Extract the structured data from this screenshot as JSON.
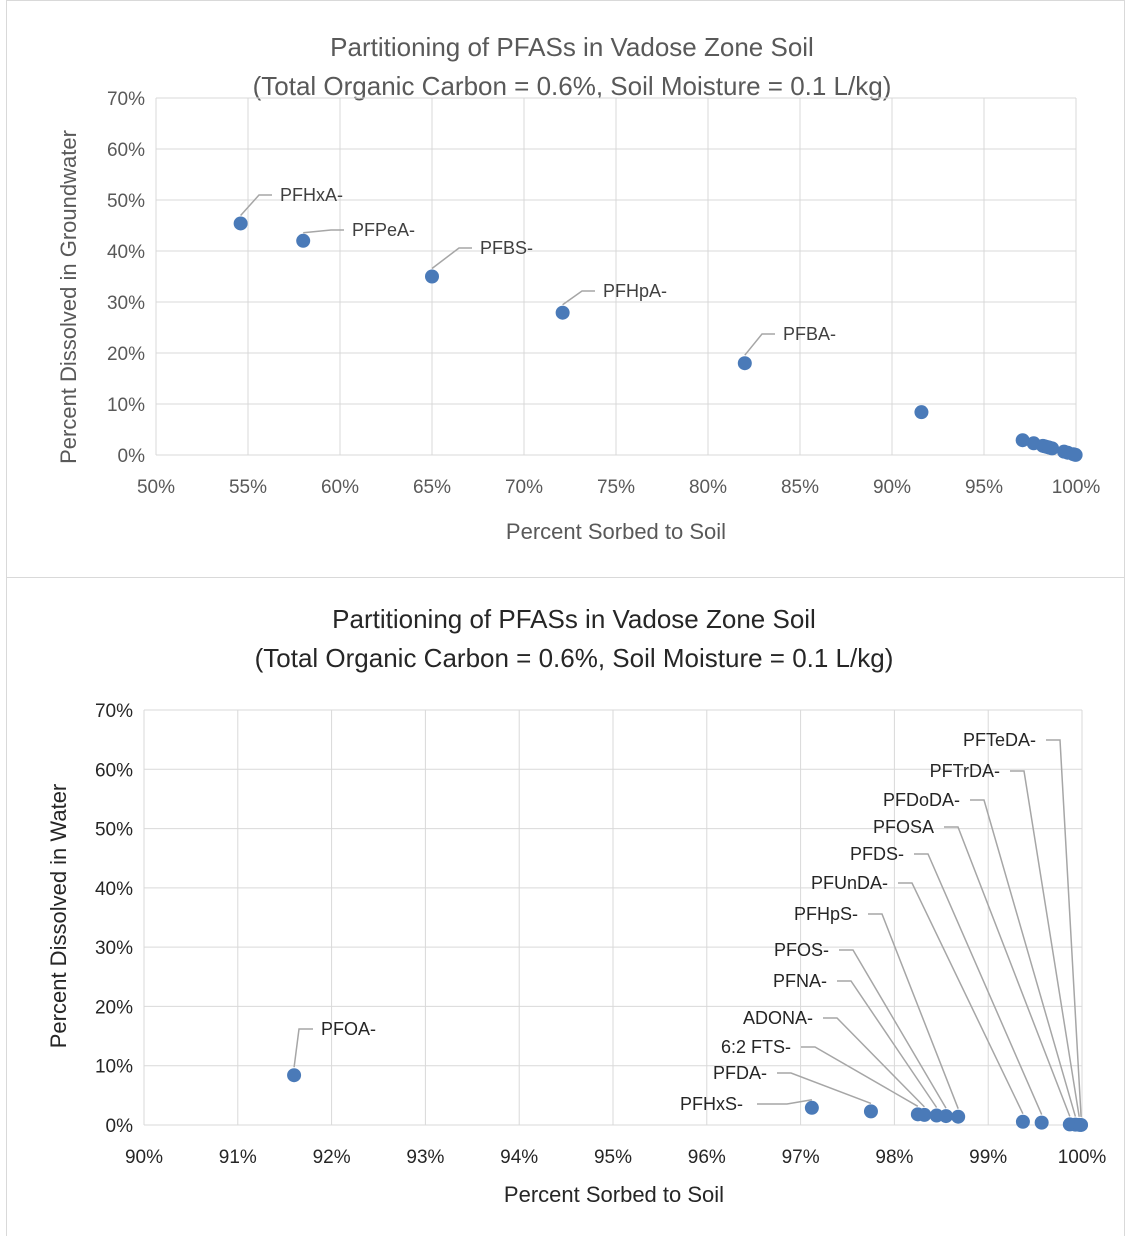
{
  "colors": {
    "marker": "#4a7ab8",
    "grid": "#d9d9d9",
    "leader": "#a6a6a6"
  },
  "chart_data": [
    {
      "type": "scatter",
      "title": "Partitioning of PFASs in Vadose Zone Soil",
      "subtitle": "(Total Organic Carbon = 0.6%, Soil Moisture = 0.1 L/kg)",
      "xlabel": "Percent Sorbed to Soil",
      "ylabel": "Percent Dissolved in Groundwater",
      "xlim": [
        50,
        100
      ],
      "ylim": [
        0,
        70
      ],
      "xticks": [
        "50%",
        "55%",
        "60%",
        "65%",
        "70%",
        "75%",
        "80%",
        "85%",
        "90%",
        "95%",
        "100%"
      ],
      "yticks": [
        "0%",
        "10%",
        "20%",
        "30%",
        "40%",
        "50%",
        "60%",
        "70%"
      ],
      "grid": true,
      "points": [
        {
          "x": 54.6,
          "y": 45.4,
          "label": "PFHxA-"
        },
        {
          "x": 58.0,
          "y": 42.0,
          "label": "PFPeA-"
        },
        {
          "x": 65.0,
          "y": 35.0,
          "label": "PFBS-"
        },
        {
          "x": 72.1,
          "y": 27.9,
          "label": "PFHpA-"
        },
        {
          "x": 82.0,
          "y": 18.0,
          "label": "PFBA-"
        },
        {
          "x": 91.6,
          "y": 8.4
        },
        {
          "x": 97.1,
          "y": 2.9
        },
        {
          "x": 97.7,
          "y": 2.3
        },
        {
          "x": 98.2,
          "y": 1.8
        },
        {
          "x": 98.3,
          "y": 1.7
        },
        {
          "x": 98.45,
          "y": 1.55
        },
        {
          "x": 98.55,
          "y": 1.45
        },
        {
          "x": 98.7,
          "y": 1.3
        },
        {
          "x": 99.35,
          "y": 0.65
        },
        {
          "x": 99.55,
          "y": 0.45
        },
        {
          "x": 99.85,
          "y": 0.15
        },
        {
          "x": 99.98,
          "y": 0.02
        }
      ]
    },
    {
      "type": "scatter",
      "title": "Partitioning of PFASs in Vadose Zone Soil",
      "subtitle": "(Total Organic Carbon = 0.6%, Soil Moisture = 0.1 L/kg)",
      "xlabel": "Percent Sorbed to Soil",
      "ylabel": "Percent Dissolved in Water",
      "xlim": [
        90,
        100
      ],
      "ylim": [
        0,
        70
      ],
      "xticks": [
        "90%",
        "91%",
        "92%",
        "93%",
        "94%",
        "95%",
        "96%",
        "97%",
        "98%",
        "99%",
        "100%"
      ],
      "yticks": [
        "0%",
        "10%",
        "20%",
        "30%",
        "40%",
        "50%",
        "60%",
        "70%"
      ],
      "grid": true,
      "points": [
        {
          "x": 91.6,
          "y": 8.4,
          "label": "PFOA-"
        },
        {
          "x": 97.12,
          "y": 2.9,
          "label": "PFHxS-"
        },
        {
          "x": 97.75,
          "y": 2.3,
          "label": "PFDA-"
        },
        {
          "x": 98.25,
          "y": 1.8,
          "label": "6:2 FTS-"
        },
        {
          "x": 98.32,
          "y": 1.7,
          "label": "ADONA-"
        },
        {
          "x": 98.45,
          "y": 1.6,
          "label": "PFNA-"
        },
        {
          "x": 98.55,
          "y": 1.5,
          "label": "PFOS-"
        },
        {
          "x": 98.68,
          "y": 1.4,
          "label": "PFHpS-"
        },
        {
          "x": 99.37,
          "y": 0.55,
          "label": "PFUnDA-"
        },
        {
          "x": 99.57,
          "y": 0.4,
          "label": "PFDS-"
        },
        {
          "x": 99.87,
          "y": 0.1,
          "label": "PFOSA"
        },
        {
          "x": 99.93,
          "y": 0.06,
          "label": "PFDoDA-"
        },
        {
          "x": 99.97,
          "y": 0.03,
          "label": "PFTrDA-"
        },
        {
          "x": 99.99,
          "y": 0.01,
          "label": "PFTeDA-"
        }
      ]
    }
  ]
}
